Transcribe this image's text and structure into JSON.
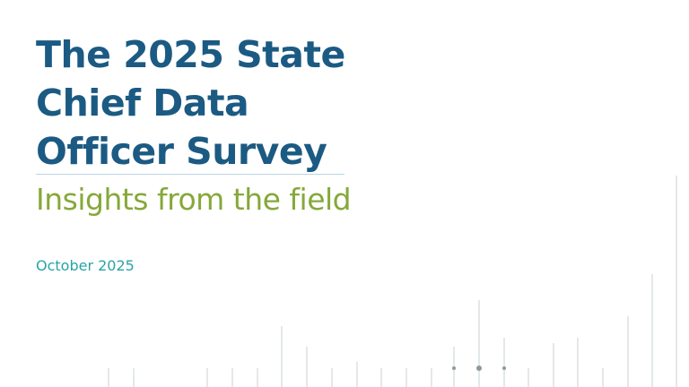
{
  "cover": {
    "title_lines": [
      "The 2025 State",
      "Chief Data",
      "Officer Survey"
    ],
    "subtitle": "Insights from the field",
    "date": "October 2025"
  },
  "colors": {
    "title": "#1b5a83",
    "subtitle": "#86a83a",
    "date": "#2aa3a6",
    "decor_lines": "#c8d2d6",
    "decor_dots": "#8a9a9c"
  }
}
